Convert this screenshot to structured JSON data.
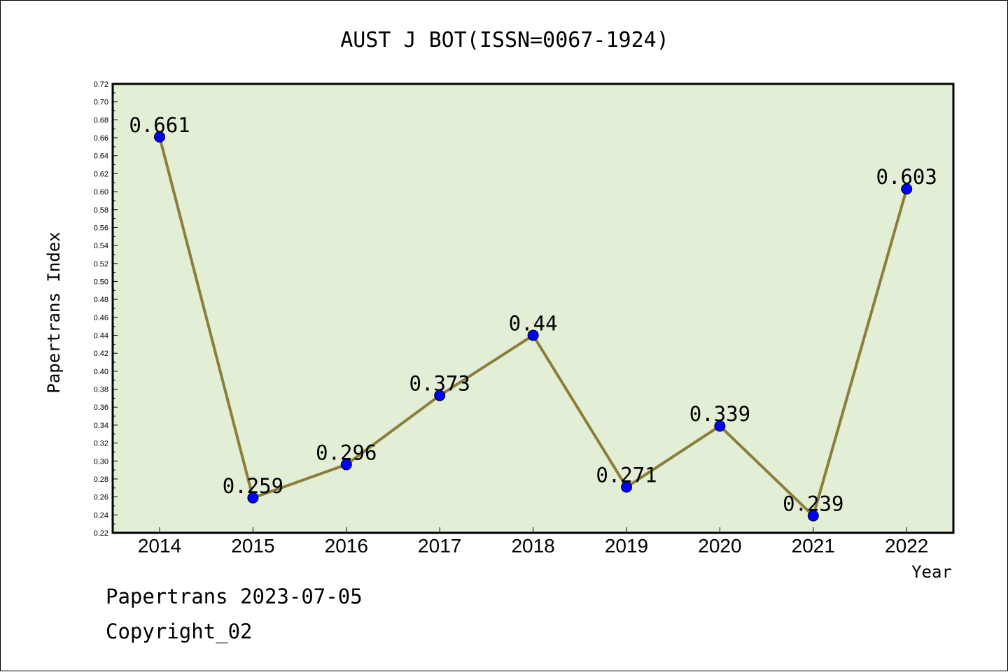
{
  "chart_data": {
    "type": "line",
    "title": "AUST J BOT(ISSN=0067-1924)",
    "xlabel": "Year",
    "ylabel": "Papertrans Index",
    "categories": [
      "2014",
      "2015",
      "2016",
      "2017",
      "2018",
      "2019",
      "2020",
      "2021",
      "2022"
    ],
    "values": [
      0.661,
      0.259,
      0.296,
      0.373,
      0.44,
      0.271,
      0.339,
      0.239,
      0.603
    ],
    "data_labels": [
      "0.661",
      "0.259",
      "0.296",
      "0.373",
      "0.44",
      "0.271",
      "0.339",
      "0.239",
      "0.603"
    ],
    "ylim": [
      0.22,
      0.72
    ],
    "ytick_step": 0.02,
    "grid": false,
    "colors": {
      "plot_background": "#e2efd6",
      "line": "#8b7d3a",
      "marker": "#0000ff"
    }
  },
  "footer": {
    "line1": "Papertrans 2023-07-05",
    "line2": "Copyright_02"
  }
}
